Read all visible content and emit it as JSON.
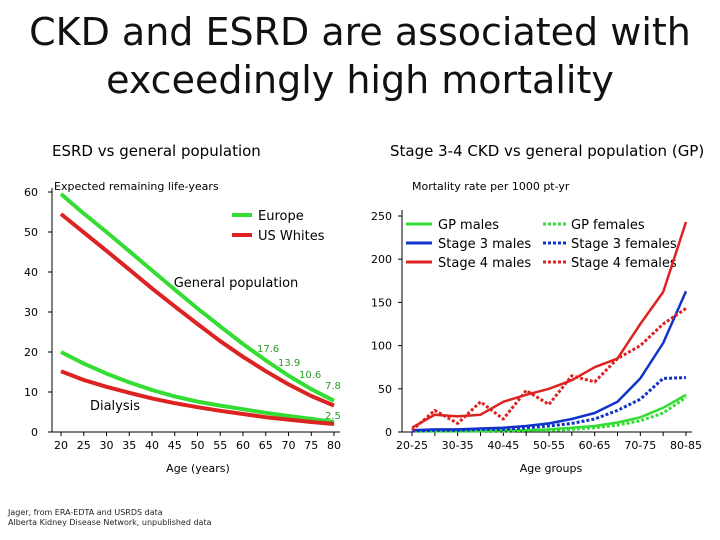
{
  "title_line1": "CKD and ESRD are associated with",
  "title_line2": "exceedingly high mortality",
  "footnote_line1": "Jager, from ERA-EDTA and USRDS data",
  "footnote_line2": "Alberta Kidney Disease Network, unpublished data",
  "chart_data": [
    {
      "type": "line",
      "title": "ESRD vs general population",
      "subtitle": "Expected remaining life-years",
      "xlabel": "Age (years)",
      "ylabel": "",
      "x": [
        20,
        25,
        30,
        35,
        40,
        45,
        50,
        55,
        60,
        65,
        70,
        75,
        80
      ],
      "ylim": [
        0,
        60
      ],
      "yticks": [
        0,
        10,
        20,
        30,
        40,
        50,
        60
      ],
      "grid": false,
      "legend_position": "top-right",
      "series": [
        {
          "name": "Europe",
          "color": "#33dd33",
          "group": "General population",
          "values": [
            59.5,
            54.6,
            50.0,
            45.2,
            40.4,
            35.6,
            30.9,
            26.4,
            22.0,
            17.9,
            14.1,
            10.7,
            7.8
          ]
        },
        {
          "name": "US Whites",
          "color": "#dd2222",
          "group": "General population",
          "values": [
            54.5,
            49.9,
            45.3,
            40.6,
            35.9,
            31.4,
            27.0,
            22.7,
            18.8,
            15.2,
            11.9,
            9.0,
            6.6
          ]
        },
        {
          "name": "",
          "color": "#33dd33",
          "group": "Dialysis",
          "values": [
            20.0,
            17.1,
            14.6,
            12.4,
            10.5,
            8.9,
            7.6,
            6.6,
            5.7,
            4.8,
            4.0,
            3.3,
            2.5
          ]
        },
        {
          "name": "",
          "color": "#dd2222",
          "group": "Dialysis",
          "values": [
            15.2,
            13.0,
            11.3,
            9.8,
            8.4,
            7.2,
            6.2,
            5.3,
            4.5,
            3.7,
            3.1,
            2.5,
            2.0
          ]
        }
      ],
      "annotations": [
        {
          "text": "General population"
        },
        {
          "text": "Dialysis"
        },
        {
          "text": "17.6",
          "x": 60,
          "y": 17.6
        },
        {
          "text": "13.9",
          "x": 65,
          "y": 13.9
        },
        {
          "text": "10.6",
          "x": 70,
          "y": 10.6
        },
        {
          "text": "7.8",
          "x": 80,
          "y": 7.8
        },
        {
          "text": "2.5",
          "x": 80,
          "y": 2.5
        }
      ]
    },
    {
      "type": "line",
      "title": "Stage 3-4 CKD vs general population (GP)",
      "subtitle": "Mortality rate per 1000 pt-yr",
      "xlabel": "Age groups",
      "ylabel": "",
      "categories": [
        "20-25",
        "25-30",
        "30-35",
        "35-40",
        "40-45",
        "45-50",
        "50-55",
        "55-60",
        "60-65",
        "65-70",
        "70-75",
        "75-80",
        "80-85"
      ],
      "tick_labels": [
        "20-25",
        "",
        "30-35",
        "",
        "40-45",
        "",
        "50-55",
        "",
        "60-65",
        "",
        "70-75",
        "",
        "80-85"
      ],
      "ylim": [
        0,
        250
      ],
      "yticks": [
        0,
        50,
        100,
        150,
        200,
        250
      ],
      "grid": false,
      "legend_position": "top",
      "series": [
        {
          "name": "GP males",
          "color": "#33dd33",
          "dashed": false,
          "values": [
            1,
            1,
            1,
            1,
            2,
            2,
            3,
            5,
            7,
            11,
            17,
            28,
            43
          ]
        },
        {
          "name": "Stage 3 males",
          "color": "#1133cc",
          "dashed": false,
          "values": [
            2,
            3,
            3,
            4,
            5,
            7,
            10,
            15,
            22,
            35,
            62,
            103,
            163
          ]
        },
        {
          "name": "Stage 4 males",
          "color": "#dd2222",
          "dashed": false,
          "values": [
            5,
            20,
            18,
            20,
            35,
            43,
            50,
            60,
            75,
            85,
            125,
            162,
            243
          ]
        },
        {
          "name": "GP females",
          "color": "#33dd33",
          "dashed": true,
          "values": [
            1,
            1,
            1,
            1,
            1,
            2,
            2,
            3,
            5,
            8,
            13,
            22,
            40
          ]
        },
        {
          "name": "Stage 3 females",
          "color": "#1133cc",
          "dashed": true,
          "values": [
            1,
            2,
            2,
            3,
            3,
            5,
            7,
            10,
            15,
            25,
            38,
            62,
            63
          ]
        },
        {
          "name": "Stage 4 females",
          "color": "#dd2222",
          "dashed": true,
          "values": [
            2,
            25,
            10,
            35,
            15,
            48,
            32,
            65,
            58,
            85,
            100,
            125,
            143
          ]
        }
      ]
    }
  ]
}
